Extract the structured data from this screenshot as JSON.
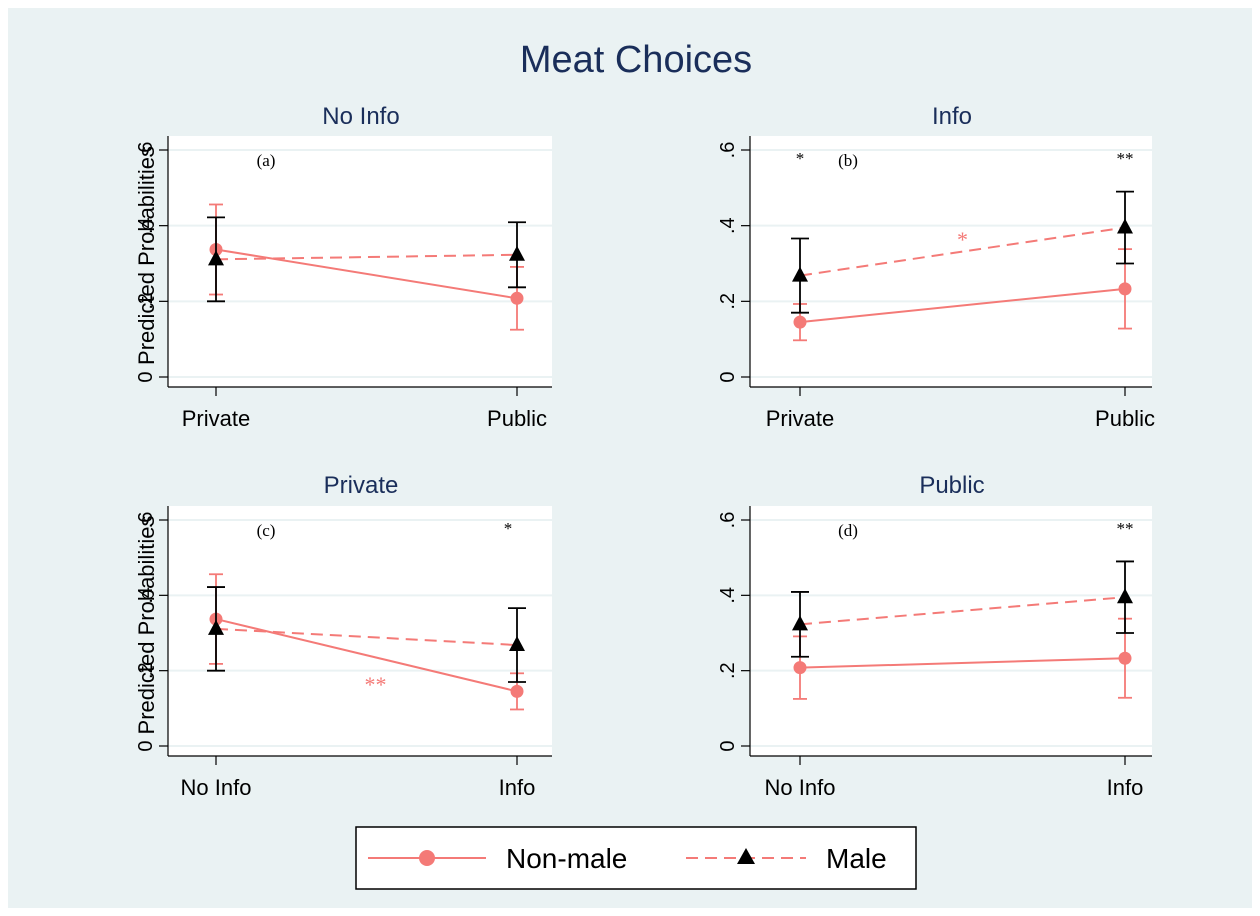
{
  "title": "Meat Choices",
  "colors": {
    "background": "#eaf2f3",
    "plot_bg": "#ffffff",
    "grid": "#eaf2f3",
    "title": "#1a2e5a",
    "non_male": "#f47a77",
    "male": "#000000",
    "axis": "#000000"
  },
  "legend": {
    "placement": "bottom-center",
    "items": [
      {
        "label": "Non-male",
        "marker": "circle",
        "line": "solid",
        "color": "#f47a77"
      },
      {
        "label": "Male",
        "marker": "triangle",
        "line": "dashed",
        "color": "#000000"
      }
    ]
  },
  "chart_data": [
    {
      "type": "line",
      "panel": "(a)",
      "title": "No Info",
      "ylabel": "Predicted Probabilities",
      "categories": [
        "Private",
        "Public"
      ],
      "ylim": [
        0,
        0.6
      ],
      "yticks": [
        0,
        0.2,
        0.4,
        0.6
      ],
      "ytick_labels": [
        "0",
        ".2",
        ".4",
        ".6"
      ],
      "grid": true,
      "series": [
        {
          "name": "Non-male",
          "values": [
            0.337,
            0.208
          ],
          "ci_low": [
            0.218,
            0.125
          ],
          "ci_high": [
            0.456,
            0.291
          ]
        },
        {
          "name": "Male",
          "values": [
            0.311,
            0.323
          ],
          "ci_low": [
            0.2,
            0.237
          ],
          "ci_high": [
            0.422,
            0.409
          ]
        }
      ],
      "annotations": []
    },
    {
      "type": "line",
      "panel": "(b)",
      "title": "Info",
      "ylabel": "",
      "categories": [
        "Private",
        "Public"
      ],
      "ylim": [
        0,
        0.6
      ],
      "yticks": [
        0,
        0.2,
        0.4,
        0.6
      ],
      "ytick_labels": [
        "0",
        ".2",
        ".4",
        ".6"
      ],
      "grid": true,
      "series": [
        {
          "name": "Non-male",
          "values": [
            0.145,
            0.233
          ],
          "ci_low": [
            0.097,
            0.128
          ],
          "ci_high": [
            0.193,
            0.338
          ]
        },
        {
          "name": "Male",
          "values": [
            0.268,
            0.395
          ],
          "ci_low": [
            0.17,
            0.3
          ],
          "ci_high": [
            0.366,
            0.49
          ]
        }
      ],
      "annotations": [
        {
          "text": "*",
          "x": 0,
          "y": 0.6,
          "color": "#000000"
        },
        {
          "text": "**",
          "x": 1,
          "y": 0.6,
          "color": "#000000"
        },
        {
          "text": "*",
          "x": 0.5,
          "y": 0.37,
          "color": "#f47a77"
        }
      ]
    },
    {
      "type": "line",
      "panel": "(c)",
      "title": "Private",
      "ylabel": "Predicted Probabilities",
      "categories": [
        "No Info",
        "Info"
      ],
      "ylim": [
        0,
        0.6
      ],
      "yticks": [
        0,
        0.2,
        0.4,
        0.6
      ],
      "ytick_labels": [
        "0",
        ".2",
        ".4",
        ".6"
      ],
      "grid": true,
      "series": [
        {
          "name": "Non-male",
          "values": [
            0.337,
            0.145
          ],
          "ci_low": [
            0.218,
            0.097
          ],
          "ci_high": [
            0.456,
            0.193
          ]
        },
        {
          "name": "Male",
          "values": [
            0.311,
            0.268
          ],
          "ci_low": [
            0.2,
            0.17
          ],
          "ci_high": [
            0.422,
            0.366
          ]
        }
      ],
      "annotations": [
        {
          "text": "*",
          "x": 0.97,
          "y": 0.6,
          "color": "#000000"
        },
        {
          "text": "**",
          "x": 0.53,
          "y": 0.17,
          "color": "#f47a77"
        }
      ]
    },
    {
      "type": "line",
      "panel": "(d)",
      "title": "Public",
      "ylabel": "",
      "categories": [
        "No Info",
        "Info"
      ],
      "ylim": [
        0,
        0.6
      ],
      "yticks": [
        0,
        0.2,
        0.4,
        0.6
      ],
      "ytick_labels": [
        "0",
        ".2",
        ".4",
        ".6"
      ],
      "grid": true,
      "series": [
        {
          "name": "Non-male",
          "values": [
            0.208,
            0.233
          ],
          "ci_low": [
            0.125,
            0.128
          ],
          "ci_high": [
            0.291,
            0.338
          ]
        },
        {
          "name": "Male",
          "values": [
            0.323,
            0.395
          ],
          "ci_low": [
            0.237,
            0.3
          ],
          "ci_high": [
            0.409,
            0.49
          ]
        }
      ],
      "annotations": [
        {
          "text": "**",
          "x": 1,
          "y": 0.6,
          "color": "#000000"
        }
      ]
    }
  ]
}
